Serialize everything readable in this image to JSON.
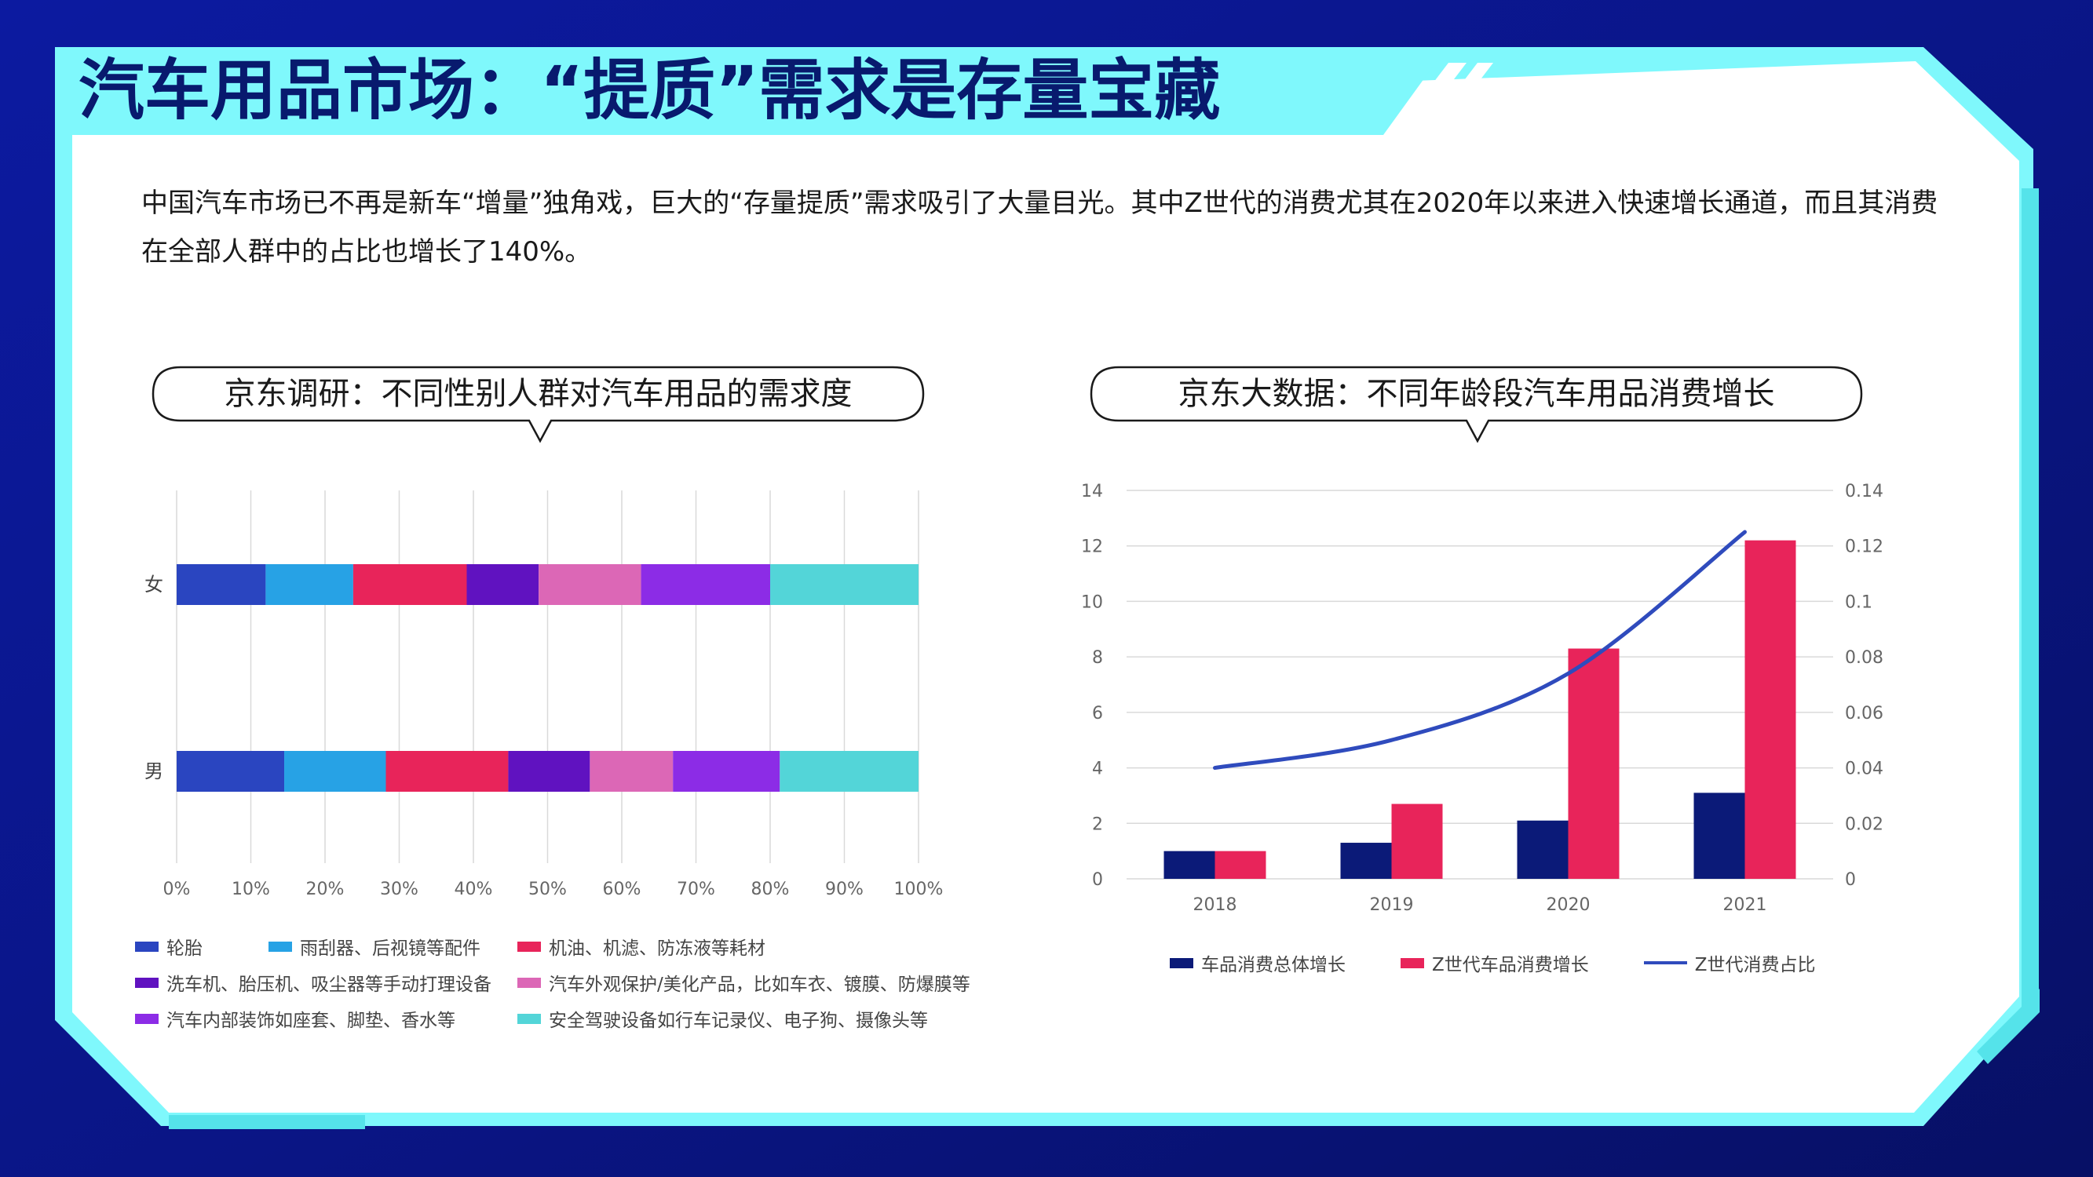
{
  "page": {
    "title": "汽车用品市场：“提质”需求是存量宝藏",
    "intro": "中国汽车市场已不再是新车“增量”独角戏，巨大的“存量提质”需求吸引了大量目光。其中Z世代的消费尤其在2020年以来进入快速增长通道，而且其消费在全部人群中的占比也增长了140%。"
  },
  "colors": {
    "background_dark": "#0a1680",
    "frame_cyan": "#7ff8fc",
    "title_text": "#081a6e"
  },
  "chart_data": [
    {
      "type": "bar",
      "orientation": "horizontal",
      "stacked": "percent",
      "title": "京东调研：不同性别人群对汽车用品的需求度",
      "categories": [
        "女",
        "男"
      ],
      "x_ticks": [
        "0%",
        "10%",
        "20%",
        "30%",
        "40%",
        "50%",
        "60%",
        "70%",
        "80%",
        "90%",
        "100%"
      ],
      "xlim": [
        0,
        100
      ],
      "grid": "vertical",
      "legend_position": "bottom",
      "series": [
        {
          "name": "轮胎",
          "color": "#2a45c0",
          "values": [
            12,
            14.5
          ]
        },
        {
          "name": "雨刮器、后视镜等配件",
          "color": "#27a2e5",
          "values": [
            11.8,
            13.7
          ]
        },
        {
          "name": "机油、机滤、防冻液等耗材",
          "color": "#e8245a",
          "values": [
            15.3,
            16.5
          ]
        },
        {
          "name": "洗车机、胎压机、吸尘器等手动打理设备",
          "color": "#6012c0",
          "values": [
            9.7,
            11
          ]
        },
        {
          "name": "汽车外观保护/美化产品，比如车衣、镀膜、防爆膜等",
          "color": "#dc67b6",
          "values": [
            13.8,
            11.2
          ]
        },
        {
          "name": "汽车内部装饰如座套、脚垫、香水等",
          "color": "#8c2ce6",
          "values": [
            17.4,
            14.4
          ]
        },
        {
          "name": "安全驾驶设备如行车记录仪、电子狗、摄像头等",
          "color": "#53d5d8",
          "values": [
            20,
            18.7
          ]
        }
      ]
    },
    {
      "type": "bar",
      "title": "京东大数据：不同年龄段汽车用品消费增长",
      "categories": [
        "2018",
        "2019",
        "2020",
        "2021"
      ],
      "ylim": [
        0,
        14
      ],
      "y_ticks": [
        "0",
        "2",
        "4",
        "6",
        "8",
        "10",
        "12",
        "14"
      ],
      "y2lim": [
        0,
        0.14
      ],
      "y2_ticks": [
        "0",
        "0.02",
        "0.04",
        "0.06",
        "0.08",
        "0.1",
        "0.12",
        "0.14"
      ],
      "grid": "horizontal",
      "legend_position": "bottom",
      "series": [
        {
          "name": "车品消费总体增长",
          "type": "bar",
          "axis": "left",
          "color": "#0b1a78",
          "values": [
            1,
            1.3,
            2.1,
            3.1
          ]
        },
        {
          "name": "Z世代车品消费增长",
          "type": "bar",
          "axis": "left",
          "color": "#e8245a",
          "values": [
            1,
            2.7,
            8.3,
            12.2
          ]
        },
        {
          "name": "Z世代消费占比",
          "type": "line",
          "axis": "right",
          "color": "#2f4bbd",
          "values": [
            0.04,
            0.05,
            0.074,
            0.125
          ]
        }
      ]
    }
  ]
}
